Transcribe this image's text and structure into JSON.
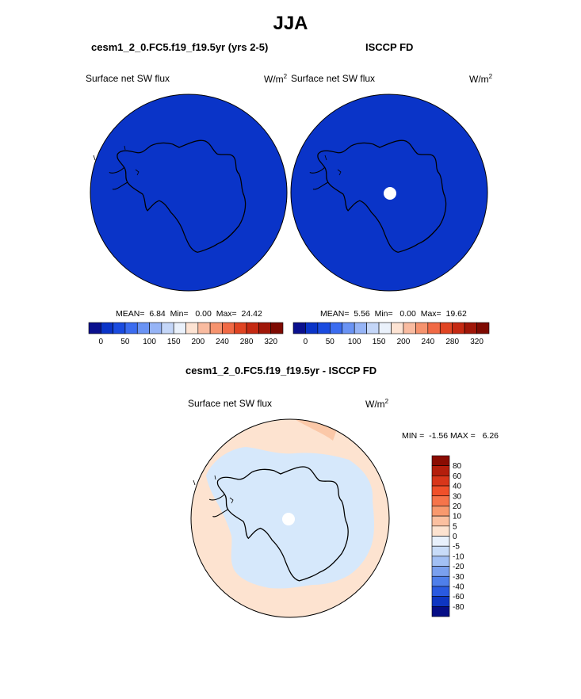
{
  "title": "JJA",
  "panels": [
    {
      "case_title": "cesm1_2_0.FC5.f19_f19.5yr (yrs 2-5)",
      "variable": "Surface net SW flux",
      "units_base": "W/m",
      "units_exp": "2",
      "stats": {
        "mean_label": "MEAN=",
        "mean": "6.84",
        "min_label": "Min=",
        "min": "0.00",
        "max_label": "Max=",
        "max": "24.42"
      },
      "fill_color": "#0a34c8"
    },
    {
      "case_title": "ISCCP FD",
      "variable": "Surface net SW flux",
      "units_base": "W/m",
      "units_exp": "2",
      "stats": {
        "mean_label": "MEAN=",
        "mean": "5.56",
        "min_label": "Min=",
        "min": "0.00",
        "max_label": "Max=",
        "max": "19.62"
      },
      "fill_color": "#0a34c8"
    }
  ],
  "top_colorbar": {
    "tick_labels": [
      "0",
      "50",
      "100",
      "150",
      "200",
      "240",
      "280",
      "320"
    ],
    "colors": [
      "#0a108e",
      "#0a34c8",
      "#1a4be0",
      "#3b6cf0",
      "#6a93f4",
      "#96b4f6",
      "#c4d6f8",
      "#eaf1fb",
      "#fde3d3",
      "#f9bba0",
      "#f6936e",
      "#f16a45",
      "#e04422",
      "#c52912",
      "#a01608",
      "#7e0a02"
    ]
  },
  "diff": {
    "case_title": "cesm1_2_0.FC5.f19_f19.5yr - ISCCP FD",
    "variable": "Surface net SW flux",
    "units_base": "W/m",
    "units_exp": "2",
    "minmax": {
      "min_label": "MIN =",
      "min": "-1.56",
      "max_label": "MAX =",
      "max": "6.26"
    },
    "colorbar": {
      "tick_labels": [
        "80",
        "60",
        "40",
        "30",
        "20",
        "10",
        "5",
        "0",
        "-5",
        "-10",
        "-20",
        "-30",
        "-40",
        "-60",
        "-80"
      ],
      "colors": [
        "#8a0c02",
        "#b41e0c",
        "#d8361a",
        "#f0502a",
        "#f6744a",
        "#f8996e",
        "#fbc0a0",
        "#fde3d0",
        "#e8f1fc",
        "#c8dcf8",
        "#a2c0f4",
        "#7aa0ee",
        "#4f7fea",
        "#2a5ae0",
        "#0e36c2",
        "#060e86"
      ]
    },
    "ocean_color": "#fde3d0",
    "ocean_dark_color": "#fbc8a8",
    "land_color": "#d6e8fb"
  }
}
